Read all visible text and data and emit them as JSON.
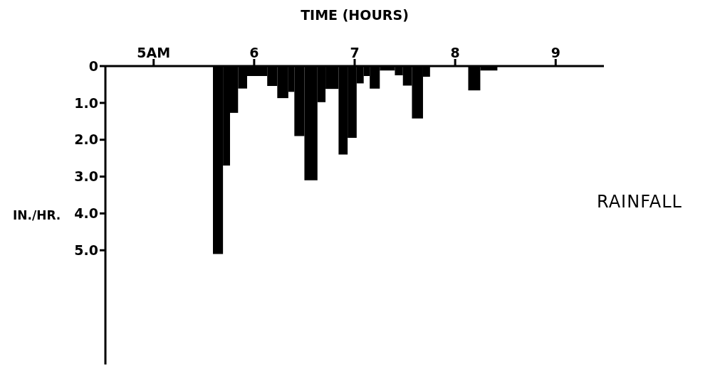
{
  "chart_data": {
    "type": "histogram",
    "xlabel": "TIME (HOURS)",
    "ylabel": "IN./HR.",
    "annotations": [
      "RAINFALL"
    ],
    "bins": [
      5.59,
      5.69,
      5.76,
      5.84,
      5.93,
      6.13,
      6.23,
      6.34,
      6.4,
      6.5,
      6.63,
      6.71,
      6.84,
      6.93,
      7.02,
      7.09,
      7.15,
      7.25,
      7.4,
      7.48,
      7.57,
      7.68,
      7.75,
      8.13,
      8.25,
      8.42
    ],
    "values": [
      5.1,
      2.7,
      1.27,
      0.61,
      0.27,
      0.54,
      0.87,
      0.7,
      1.9,
      3.1,
      0.98,
      0.62,
      2.4,
      1.95,
      0.47,
      0.27,
      0.61,
      0.12,
      0.25,
      0.53,
      1.42,
      0.29,
      0,
      0.66,
      0.12
    ],
    "color": "#000000",
    "xlim": [
      4.52,
      9.48
    ],
    "xticks": [
      {
        "value": 5,
        "label": "5AM"
      },
      6,
      7,
      8,
      9
    ],
    "ylim": [
      8.1,
      0
    ],
    "yticks": [
      0,
      {
        "value": 1,
        "label": "1.0"
      },
      {
        "value": 2,
        "label": "2.0"
      },
      {
        "value": 3,
        "label": "3.0"
      },
      {
        "value": 4,
        "label": "4.0"
      },
      {
        "value": 5,
        "label": "5.0"
      }
    ]
  }
}
